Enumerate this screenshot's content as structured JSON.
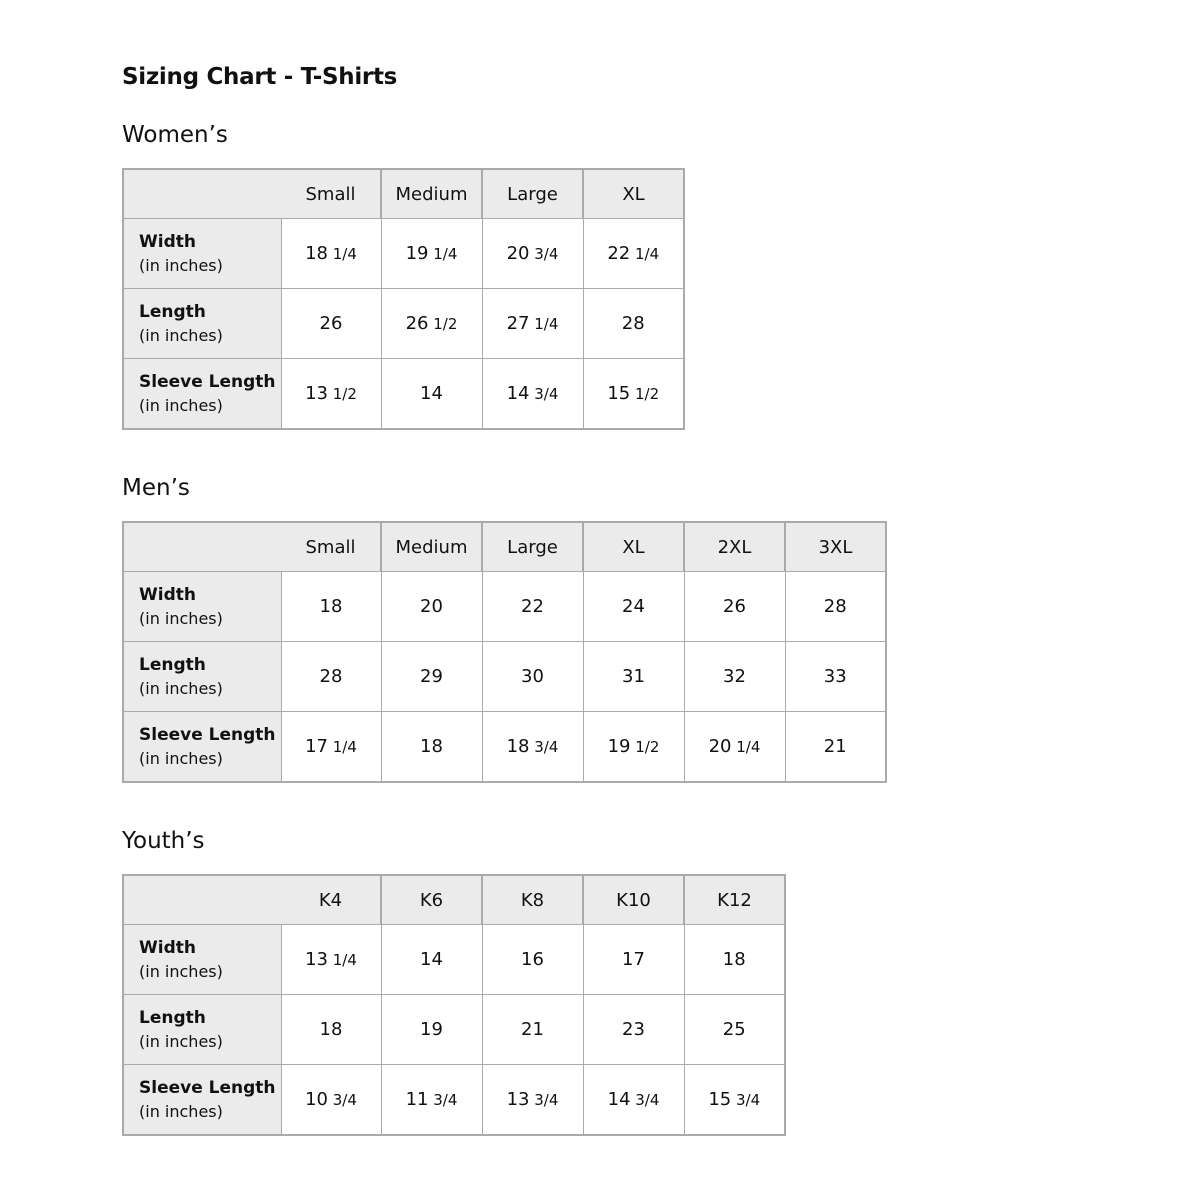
{
  "title": "Sizing Chart - T-Shirts",
  "unit": "(in inches)",
  "tables": [
    {
      "heading": "Women’s",
      "columns": [
        "Small",
        "Medium",
        "Large",
        "XL"
      ],
      "rows": [
        {
          "label": "Width",
          "values": [
            "18 1/4",
            "19 1/4",
            "20 3/4",
            "22 1/4"
          ]
        },
        {
          "label": "Length",
          "values": [
            "26",
            "26 1/2",
            "27 1/4",
            "28"
          ]
        },
        {
          "label": "Sleeve Length",
          "values": [
            "13 1/2",
            "14",
            "14 3/4",
            "15 1/2"
          ]
        }
      ]
    },
    {
      "heading": "Men’s",
      "columns": [
        "Small",
        "Medium",
        "Large",
        "XL",
        "2XL",
        "3XL"
      ],
      "rows": [
        {
          "label": "Width",
          "values": [
            "18",
            "20",
            "22",
            "24",
            "26",
            "28"
          ]
        },
        {
          "label": "Length",
          "values": [
            "28",
            "29",
            "30",
            "31",
            "32",
            "33"
          ]
        },
        {
          "label": "Sleeve Length",
          "values": [
            "17 1/4",
            "18",
            "18 3/4",
            "19 1/2",
            "20 1/4",
            "21"
          ]
        }
      ]
    },
    {
      "heading": "Youth’s",
      "columns": [
        "K4",
        "K6",
        "K8",
        "K10",
        "K12"
      ],
      "rows": [
        {
          "label": "Width",
          "values": [
            "13 1/4",
            "14",
            "16",
            "17",
            "18"
          ]
        },
        {
          "label": "Length",
          "values": [
            "18",
            "19",
            "21",
            "23",
            "25"
          ]
        },
        {
          "label": "Sleeve Length",
          "values": [
            "10 3/4",
            "11 3/4",
            "13 3/4",
            "14 3/4",
            "15 3/4"
          ]
        }
      ]
    }
  ]
}
